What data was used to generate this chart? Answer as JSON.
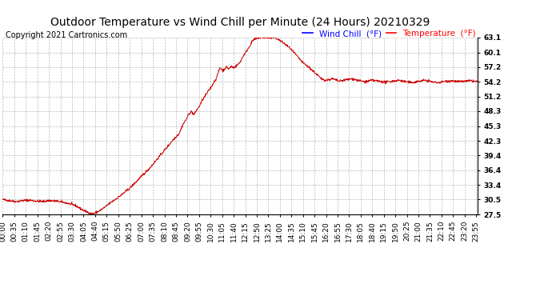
{
  "title": "Outdoor Temperature vs Wind Chill per Minute (24 Hours) 20210329",
  "copyright": "Copyright 2021 Cartronics.com",
  "legend_wind_chill": "Wind Chill  (°F)",
  "legend_temperature": "Temperature  (°F)",
  "wind_chill_color": "blue",
  "temperature_color": "red",
  "yticks": [
    27.5,
    30.5,
    33.4,
    36.4,
    39.4,
    42.3,
    45.3,
    48.3,
    51.2,
    54.2,
    57.2,
    60.1,
    63.1
  ],
  "ylim": [
    27.5,
    63.1
  ],
  "background_color": "#ffffff",
  "plot_bg_color": "#ffffff",
  "grid_color": "#bbbbbb",
  "line_color": "#cc0000",
  "title_fontsize": 10,
  "tick_fontsize": 6.5,
  "copyright_fontsize": 7,
  "legend_fontsize": 7.5,
  "total_minutes": 1440,
  "keypoints": [
    [
      0,
      30.5
    ],
    [
      20,
      30.3
    ],
    [
      40,
      30.1
    ],
    [
      60,
      30.3
    ],
    [
      80,
      30.4
    ],
    [
      100,
      30.2
    ],
    [
      120,
      30.1
    ],
    [
      140,
      30.3
    ],
    [
      160,
      30.2
    ],
    [
      180,
      30.0
    ],
    [
      200,
      29.7
    ],
    [
      220,
      29.3
    ],
    [
      240,
      28.5
    ],
    [
      255,
      28.0
    ],
    [
      265,
      27.7
    ],
    [
      270,
      27.6
    ],
    [
      280,
      27.8
    ],
    [
      295,
      28.3
    ],
    [
      310,
      29.0
    ],
    [
      325,
      29.8
    ],
    [
      340,
      30.5
    ],
    [
      355,
      31.2
    ],
    [
      370,
      32.0
    ],
    [
      385,
      32.8
    ],
    [
      400,
      33.8
    ],
    [
      415,
      34.8
    ],
    [
      430,
      35.8
    ],
    [
      445,
      36.8
    ],
    [
      460,
      38.0
    ],
    [
      475,
      39.2
    ],
    [
      490,
      40.4
    ],
    [
      505,
      41.6
    ],
    [
      520,
      42.8
    ],
    [
      535,
      43.8
    ],
    [
      545,
      45.5
    ],
    [
      555,
      46.5
    ],
    [
      565,
      47.8
    ],
    [
      572,
      48.2
    ],
    [
      580,
      47.6
    ],
    [
      587,
      48.4
    ],
    [
      595,
      49.2
    ],
    [
      605,
      50.5
    ],
    [
      620,
      52.0
    ],
    [
      635,
      53.5
    ],
    [
      648,
      55.0
    ],
    [
      658,
      57.0
    ],
    [
      668,
      56.5
    ],
    [
      678,
      57.2
    ],
    [
      685,
      56.8
    ],
    [
      693,
      57.3
    ],
    [
      700,
      57.0
    ],
    [
      708,
      57.4
    ],
    [
      718,
      58.0
    ],
    [
      730,
      59.5
    ],
    [
      745,
      61.0
    ],
    [
      758,
      62.5
    ],
    [
      772,
      63.0
    ],
    [
      790,
      63.1
    ],
    [
      810,
      63.0
    ],
    [
      825,
      63.1
    ],
    [
      840,
      62.5
    ],
    [
      855,
      61.8
    ],
    [
      870,
      61.0
    ],
    [
      890,
      59.5
    ],
    [
      910,
      58.0
    ],
    [
      930,
      57.0
    ],
    [
      950,
      55.8
    ],
    [
      965,
      54.8
    ],
    [
      980,
      54.5
    ],
    [
      1000,
      54.8
    ],
    [
      1020,
      54.3
    ],
    [
      1040,
      54.6
    ],
    [
      1060,
      54.8
    ],
    [
      1080,
      54.4
    ],
    [
      1100,
      54.2
    ],
    [
      1120,
      54.5
    ],
    [
      1140,
      54.3
    ],
    [
      1160,
      54.1
    ],
    [
      1180,
      54.3
    ],
    [
      1200,
      54.5
    ],
    [
      1220,
      54.2
    ],
    [
      1240,
      54.0
    ],
    [
      1260,
      54.3
    ],
    [
      1280,
      54.5
    ],
    [
      1300,
      54.2
    ],
    [
      1320,
      54.0
    ],
    [
      1340,
      54.3
    ],
    [
      1360,
      54.4
    ],
    [
      1380,
      54.2
    ],
    [
      1400,
      54.3
    ],
    [
      1420,
      54.4
    ],
    [
      1439,
      54.2
    ]
  ]
}
